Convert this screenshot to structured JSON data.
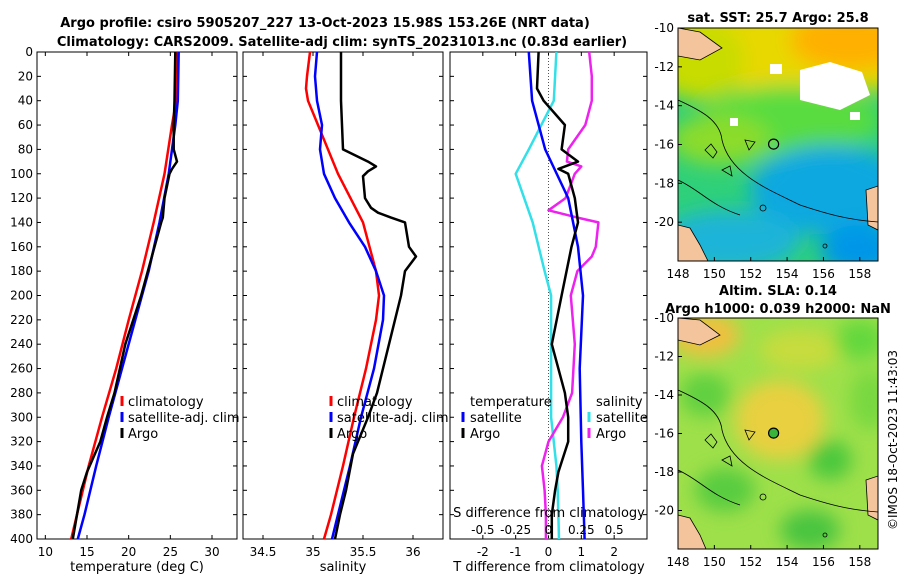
{
  "header": {
    "title_line1": "Argo profile: csiro 5905207_227 13-Oct-2023 15.98S 153.26E (NRT data)",
    "title_line2": "Climatology: CARS2009. Satellite-adj clim: synTS_20231013.nc (0.83d earlier)"
  },
  "watermark": "©IMOS 18-Oct-2023 11:43:03",
  "colors": {
    "climatology": "#ff0000",
    "satellite": "#0000ff",
    "argo": "#000000",
    "salinity_sat": "#33e0e8",
    "salinity_argo": "#ee22ee"
  },
  "chart_data": [
    {
      "type": "line",
      "name": "temperature",
      "xlabel": "temperature (deg C)",
      "xlim": [
        9,
        33
      ],
      "ylim": [
        0,
        400
      ],
      "xticks": [
        10,
        15,
        20,
        25,
        30
      ],
      "yticks": [
        0,
        20,
        40,
        60,
        80,
        100,
        120,
        140,
        160,
        180,
        200,
        220,
        240,
        260,
        280,
        300,
        320,
        340,
        360,
        380,
        400
      ],
      "legend": [
        "climatology",
        "satellite-adj. clim",
        "Argo"
      ],
      "series": [
        {
          "name": "climatology",
          "depth": [
            0,
            40,
            60,
            100,
            140,
            180,
            220,
            260,
            300,
            340,
            380,
            400
          ],
          "values": [
            25.9,
            25.7,
            25.2,
            24.3,
            23.0,
            21.6,
            20.0,
            18.5,
            16.8,
            15.2,
            13.8,
            13.1
          ]
        },
        {
          "name": "satellite-adj. clim",
          "depth": [
            0,
            40,
            60,
            100,
            140,
            180,
            220,
            260,
            300,
            340,
            380,
            400
          ],
          "values": [
            26.0,
            25.9,
            25.6,
            24.8,
            23.7,
            22.4,
            20.8,
            19.2,
            17.6,
            16.1,
            14.7,
            13.9
          ]
        },
        {
          "name": "Argo",
          "depth": [
            0,
            40,
            60,
            80,
            90,
            96,
            100,
            120,
            136,
            140,
            160,
            200,
            240,
            280,
            300,
            320,
            345,
            360,
            380,
            400
          ],
          "values": [
            25.6,
            25.5,
            25.4,
            25.4,
            25.8,
            25.2,
            24.9,
            24.3,
            24.1,
            23.9,
            23.1,
            21.5,
            19.6,
            18.3,
            17.4,
            16.6,
            15.0,
            14.3,
            13.8,
            13.3
          ]
        }
      ]
    },
    {
      "type": "line",
      "name": "salinity",
      "xlabel": "salinity",
      "xlim": [
        34.3,
        36.3
      ],
      "ylim": [
        0,
        400
      ],
      "xticks": [
        34.5,
        35,
        35.5,
        36
      ],
      "legend": [
        "climatology",
        "satellite-adj. clim",
        "Argo"
      ],
      "series": [
        {
          "name": "climatology",
          "depth": [
            0,
            20,
            30,
            40,
            60,
            100,
            140,
            180,
            200,
            220,
            260,
            300,
            340,
            380,
            400
          ],
          "values": [
            34.97,
            34.94,
            34.93,
            34.95,
            35.05,
            35.25,
            35.5,
            35.63,
            35.66,
            35.63,
            35.53,
            35.41,
            35.3,
            35.18,
            35.11
          ]
        },
        {
          "name": "satellite-adj. clim",
          "depth": [
            0,
            20,
            40,
            60,
            80,
            100,
            120,
            140,
            160,
            180,
            200,
            220,
            260,
            300,
            340,
            380,
            400
          ],
          "values": [
            35.04,
            35.02,
            35.04,
            35.09,
            35.07,
            35.11,
            35.22,
            35.36,
            35.52,
            35.63,
            35.71,
            35.7,
            35.61,
            35.48,
            35.37,
            35.25,
            35.19
          ]
        },
        {
          "name": "Argo",
          "depth": [
            0,
            40,
            80,
            90,
            94,
            98,
            102,
            120,
            128,
            132,
            136,
            140,
            160,
            168,
            180,
            200,
            240,
            280,
            300,
            330,
            360,
            380,
            400
          ],
          "values": [
            35.28,
            35.28,
            35.3,
            35.55,
            35.63,
            35.55,
            35.5,
            35.52,
            35.58,
            35.65,
            35.78,
            35.92,
            35.96,
            36.03,
            35.92,
            35.88,
            35.76,
            35.64,
            35.55,
            35.4,
            35.33,
            35.27,
            35.22
          ]
        }
      ]
    },
    {
      "type": "line",
      "name": "difference",
      "xlabel": "T difference from climatology",
      "xlabel_top": "S difference from climatology",
      "xlim": [
        -3.0,
        3.0
      ],
      "ylim": [
        0,
        400
      ],
      "xticks": [
        -2,
        -1,
        0,
        1,
        2
      ],
      "xticks_s": [
        -0.5,
        -0.25,
        0,
        0.25,
        0.5
      ],
      "xticks_s_labels": [
        "-0.5",
        "-0.25",
        "0",
        "0.25",
        "0.5"
      ],
      "legend": {
        "temperature_head": "temperature",
        "salinity_head": "salinity",
        "entries": [
          "satellite",
          "Argo",
          "satellite",
          "Argo"
        ]
      },
      "series": [
        {
          "name": "temperature satellite",
          "depth": [
            0,
            40,
            80,
            120,
            160,
            200,
            260,
            320,
            360,
            400
          ],
          "values": [
            -0.6,
            -0.5,
            -0.1,
            0.6,
            0.9,
            1.05,
            0.95,
            1.0,
            1.05,
            1.1
          ]
        },
        {
          "name": "temperature Argo",
          "depth": [
            0,
            30,
            40,
            60,
            80,
            90,
            96,
            100,
            120,
            140,
            160,
            200,
            240,
            280,
            300,
            320,
            345,
            360,
            380,
            400
          ],
          "values": [
            -0.3,
            -0.35,
            -0.15,
            0.5,
            0.4,
            0.9,
            0.3,
            0.6,
            0.8,
            0.9,
            0.7,
            0.4,
            0.1,
            0.5,
            0.6,
            0.6,
            0.3,
            0.2,
            0.1,
            0.1
          ]
        },
        {
          "name": "salinity satellite",
          "depth": [
            0,
            40,
            80,
            100,
            140,
            180,
            200,
            240,
            300,
            340,
            360,
            400
          ],
          "values": [
            0.06,
            0.04,
            -0.15,
            -0.25,
            -0.12,
            -0.03,
            0.02,
            0.02,
            0.02,
            0.06,
            0.07,
            0.08
          ]
        },
        {
          "name": "salinity Argo",
          "depth": [
            0,
            20,
            40,
            60,
            80,
            90,
            94,
            100,
            120,
            130,
            136,
            140,
            160,
            168,
            180,
            200,
            240,
            280,
            300,
            320,
            340,
            360,
            380,
            400
          ],
          "values": [
            0.31,
            0.33,
            0.33,
            0.28,
            0.15,
            0.14,
            0.25,
            0.2,
            0.13,
            0.0,
            0.22,
            0.38,
            0.36,
            0.33,
            0.22,
            0.17,
            0.2,
            0.18,
            0.11,
            0.0,
            -0.05,
            -0.03,
            -0.02,
            -0.02
          ]
        }
      ]
    },
    {
      "type": "heatmap",
      "name": "sst_map",
      "title": "sat. SST: 25.7 Argo: 25.8",
      "xlim": [
        148,
        159
      ],
      "ylim": [
        -22,
        -10
      ],
      "xticks": [
        148,
        150,
        152,
        154,
        156,
        158
      ],
      "yticks": [
        -10,
        -12,
        -14,
        -16,
        -18,
        -20
      ],
      "float_lon": 153.26,
      "float_lat": -15.98
    },
    {
      "type": "heatmap",
      "name": "sla_map",
      "title_line1": "Altim. SLA: 0.14",
      "title_line2": "Argo h1000: 0.039 h2000: NaN",
      "xlim": [
        148,
        159
      ],
      "ylim": [
        -22,
        -10
      ],
      "xticks": [
        148,
        150,
        152,
        154,
        156,
        158
      ],
      "yticks": [
        -10,
        -12,
        -14,
        -16,
        -18,
        -20
      ],
      "float_lon": 153.26,
      "float_lat": -15.98
    }
  ]
}
